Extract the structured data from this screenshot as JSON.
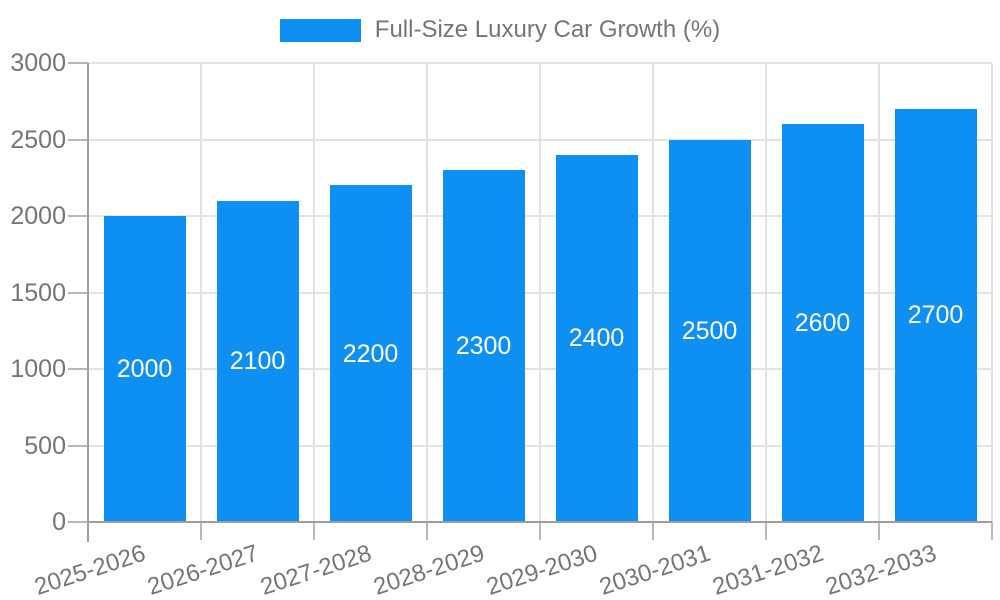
{
  "chart_data": {
    "type": "bar",
    "title": "Full-Size Luxury Car Growth (%)",
    "legend": {
      "position": "top-center",
      "label": "Full-Size Luxury Car Growth (%)"
    },
    "categories": [
      "2025-2026",
      "2026-2027",
      "2027-2028",
      "2028-2029",
      "2029-2030",
      "2030-2031",
      "2031-2032",
      "2032-2033"
    ],
    "values": [
      2000,
      2100,
      2200,
      2300,
      2400,
      2500,
      2600,
      2700
    ],
    "xlabel": "",
    "ylabel": "",
    "ylim": [
      0,
      3000
    ],
    "y_ticks": [
      0,
      500,
      1000,
      1500,
      2000,
      2500,
      3000
    ],
    "grid": true,
    "x_label_rotation_deg": -18,
    "data_labels": "inside-center",
    "colors": {
      "bar": "#0E90F2",
      "grid_line": "#E3E3E3",
      "axis_line": "#9E9E9E",
      "tick_mark": "#B8B8B8",
      "axis_text": "#757575",
      "legend_text": "#757575",
      "data_label_text": "#FFFFFF",
      "background": "#FFFFFF"
    }
  }
}
